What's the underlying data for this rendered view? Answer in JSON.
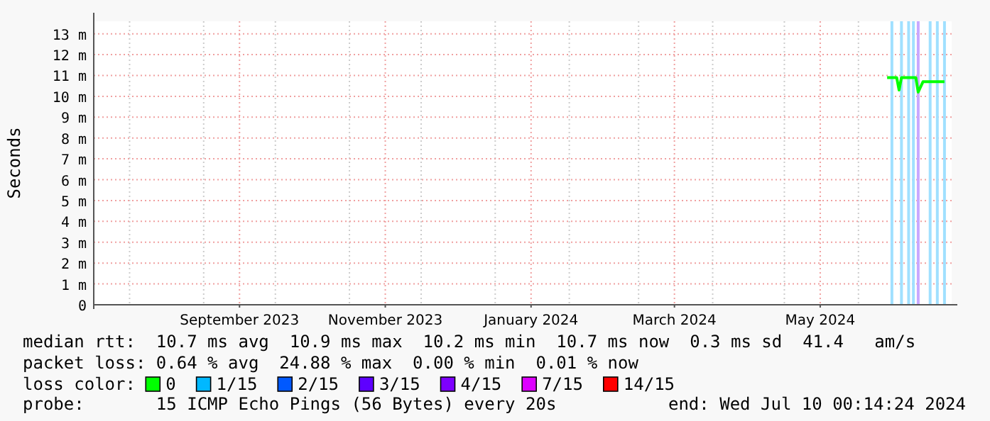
{
  "chart_data": {
    "type": "line",
    "ylabel": "Seconds",
    "legend_title": "loss color:",
    "legend": "bottom",
    "grid": true,
    "line_style": "solid",
    "xlim": [
      "2023-07-17",
      "2024-07-10"
    ],
    "xticks": [
      {
        "value": "2023-08-01",
        "label": null
      },
      {
        "value": "2023-09-01",
        "label": null
      },
      {
        "value": "2023-09-16",
        "label": "September 2023"
      },
      {
        "value": "2023-10-01",
        "label": null
      },
      {
        "value": "2023-11-01",
        "label": null
      },
      {
        "value": "2023-11-16",
        "label": "November 2023"
      },
      {
        "value": "2023-12-01",
        "label": null
      },
      {
        "value": "2024-01-01",
        "label": null
      },
      {
        "value": "2024-01-16",
        "label": "January 2024"
      },
      {
        "value": "2024-02-01",
        "label": null
      },
      {
        "value": "2024-03-01",
        "label": null
      },
      {
        "value": "2024-03-16",
        "label": "March 2024"
      },
      {
        "value": "2024-04-01",
        "label": null
      },
      {
        "value": "2024-05-01",
        "label": null
      },
      {
        "value": "2024-05-16",
        "label": "May 2024"
      },
      {
        "value": "2024-06-01",
        "label": null
      },
      {
        "value": "2024-07-01",
        "label": null
      }
    ],
    "ylim": [
      0,
      13.6
    ],
    "yticks": [
      0,
      {
        "value": 1,
        "label": "1 m"
      },
      {
        "value": 2,
        "label": "2 m"
      },
      {
        "value": 3,
        "label": "3 m"
      },
      {
        "value": 4,
        "label": "4 m"
      },
      {
        "value": 5,
        "label": "5 m"
      },
      {
        "value": 6,
        "label": "6 m"
      },
      {
        "value": 7,
        "label": "7 m"
      },
      {
        "value": 8,
        "label": "8 m"
      },
      {
        "value": 9,
        "label": "9 m"
      },
      {
        "value": 10,
        "label": "10 m"
      },
      {
        "value": 11,
        "label": "11 m"
      },
      {
        "value": 12,
        "label": "12 m"
      },
      {
        "value": 13,
        "label": "13 m"
      }
    ],
    "x": [
      "2024-06-13",
      "2024-06-17",
      "2024-06-18",
      "2024-06-19",
      "2024-06-25",
      "2024-06-26",
      "2024-06-28",
      "2024-07-07"
    ],
    "series": [
      {
        "name": "0",
        "color": "#00ff00",
        "values": [
          10.9,
          10.9,
          10.3,
          10.9,
          10.9,
          10.2,
          10.7,
          10.7
        ]
      },
      {
        "name": "1/15",
        "color": "#00b8ff",
        "values": [
          null,
          null,
          null,
          null,
          null,
          null,
          null,
          null
        ]
      },
      {
        "name": "2/15",
        "color": "#0059ff",
        "values": [
          null,
          null,
          null,
          null,
          null,
          null,
          null,
          null
        ]
      },
      {
        "name": "3/15",
        "color": "#5e00ff",
        "values": [
          null,
          null,
          null,
          null,
          null,
          null,
          null,
          null
        ]
      },
      {
        "name": "4/15",
        "color": "#7e00ff",
        "values": [
          null,
          null,
          null,
          null,
          null,
          null,
          null,
          null
        ]
      },
      {
        "name": "7/15",
        "color": "#dd00ff",
        "values": [
          null,
          null,
          null,
          null,
          null,
          null,
          null,
          null
        ]
      },
      {
        "name": "14/15",
        "color": "#ff0000",
        "values": [
          null,
          null,
          null,
          null,
          null,
          null,
          null,
          null
        ]
      }
    ],
    "ref_lines": [
      {
        "axis": "x",
        "value": "2024-06-15",
        "color": "#a0e0ff"
      },
      {
        "axis": "x",
        "value": "2024-06-19",
        "color": "#a0e0ff"
      },
      {
        "axis": "x",
        "value": "2024-06-22",
        "color": "#a0e0ff"
      },
      {
        "axis": "x",
        "value": "2024-06-24",
        "color": "#a0e0ff"
      },
      {
        "axis": "x",
        "value": "2024-06-26",
        "color": "#c8a8ff"
      },
      {
        "axis": "x",
        "value": "2024-07-01",
        "color": "#a0e0ff"
      },
      {
        "axis": "x",
        "value": "2024-07-04",
        "color": "#a0e0ff"
      },
      {
        "axis": "x",
        "value": "2024-07-07",
        "color": "#a0e0ff"
      }
    ],
    "annotations": [
      "median rtt:  10.7 ms avg  10.9 ms max  10.2 ms min  10.7 ms now  0.3 ms sd  41.4   am/s",
      "packet loss: 0.64 % avg  24.88 % max  0.00 % min  0.01 % now",
      "probe:       15 ICMP Echo Pings (56 Bytes) every 20s",
      "end: Wed Jul 10 00:14:24 2024"
    ]
  }
}
